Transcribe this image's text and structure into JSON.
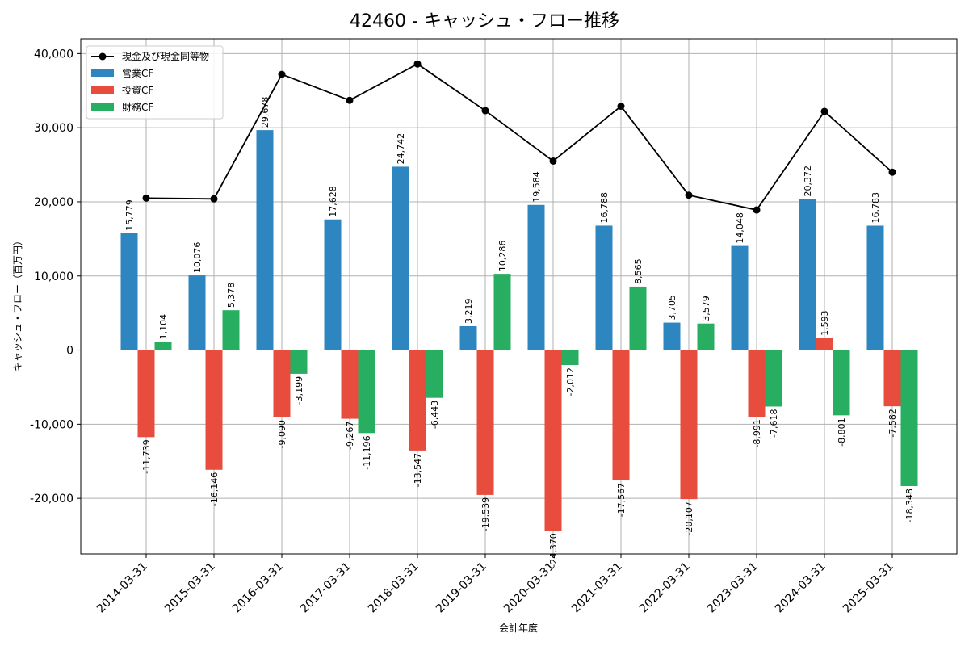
{
  "chart_data": {
    "type": "bar",
    "title": "42460 - キャッシュ・フロー推移",
    "xlabel": "会計年度",
    "ylabel": "キャッシュ・フロー（百万円）",
    "ylim": [
      -27500,
      42000
    ],
    "yticks": [
      -20000,
      -10000,
      0,
      10000,
      20000,
      30000,
      40000
    ],
    "ytick_labels": [
      "-20,000",
      "-10,000",
      "0",
      "10,000",
      "20,000",
      "30,000",
      "40,000"
    ],
    "grid": true,
    "legend_position": "top-left",
    "categories": [
      "2014-03-31",
      "2015-03-31",
      "2016-03-31",
      "2017-03-31",
      "2018-03-31",
      "2019-03-31",
      "2020-03-31",
      "2021-03-31",
      "2022-03-31",
      "2023-03-31",
      "2024-03-31",
      "2025-03-31"
    ],
    "series": [
      {
        "name": "営業CF",
        "color": "#2e86c1",
        "values": [
          15779,
          10076,
          29678,
          17628,
          24742,
          3219,
          19584,
          16788,
          3705,
          14048,
          20372,
          16783
        ],
        "labels": [
          "15,779",
          "10,076",
          "29,678",
          "17,628",
          "24,742",
          "3,219",
          "19,584",
          "16,788",
          "3,705",
          "14,048",
          "20,372",
          "16,783"
        ]
      },
      {
        "name": "投資CF",
        "color": "#e74c3c",
        "values": [
          -11739,
          -16146,
          -9090,
          -9267,
          -13547,
          -19539,
          -24370,
          -17567,
          -20107,
          -8991,
          1593,
          -7582
        ],
        "labels": [
          "-11,739",
          "-16,146",
          "-9,090",
          "-9,267",
          "-13,547",
          "-19,539",
          "-24,370",
          "-17,567",
          "-20,107",
          "-8,991",
          "1,593",
          "-7,582"
        ]
      },
      {
        "name": "財務CF",
        "color": "#27ae60",
        "values": [
          1104,
          5378,
          -3199,
          -11196,
          -6443,
          10286,
          -2012,
          8565,
          3579,
          -7618,
          -8801,
          -18348
        ],
        "labels": [
          "1,104",
          "5,378",
          "-3,199",
          "-11,196",
          "-6,443",
          "10,286",
          "-2,012",
          "8,565",
          "3,579",
          "-7,618",
          "-8,801",
          "-18,348"
        ]
      }
    ],
    "line": {
      "name": "現金及び現金同等物",
      "color": "#000000",
      "values": [
        20500,
        20400,
        37200,
        33700,
        38600,
        32300,
        25500,
        32900,
        20900,
        18900,
        32200,
        24000
      ]
    }
  }
}
